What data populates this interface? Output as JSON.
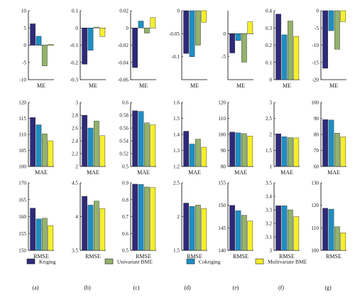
{
  "legend": [
    {
      "name": "Kriging",
      "color": "#2e2a7a"
    },
    {
      "name": "Univariate BME",
      "color": "#93b26a"
    },
    {
      "name": "Cokriging",
      "color": "#1d8fc4"
    },
    {
      "name": "Multivariate BME",
      "color": "#f5ef2a"
    }
  ],
  "panel_labels": [
    "(a)",
    "(b)",
    "(c)",
    "(d)",
    "(e)",
    "(f)",
    "(g)"
  ],
  "chart_data": [
    {
      "type": "bar",
      "panel": "(a)",
      "metric": "ME",
      "xlabel": "ME",
      "ylim": [
        -10,
        10
      ],
      "yticks": [
        "-10",
        "-5",
        "0",
        "5",
        "10"
      ],
      "values": [
        6.2,
        -6.0,
        2.6,
        0.2
      ]
    },
    {
      "type": "bar",
      "panel": "(a)",
      "metric": "MAE",
      "xlabel": "MAE",
      "ylim": [
        100,
        120
      ],
      "yticks": [
        "100",
        "105",
        "110",
        "115",
        "120"
      ],
      "values": [
        115.3,
        110.2,
        113.0,
        108.0
      ]
    },
    {
      "type": "bar",
      "panel": "(a)",
      "metric": "RMSE",
      "xlabel": "RMSE",
      "ylim": [
        150,
        170
      ],
      "yticks": [
        "150",
        "155",
        "160",
        "165",
        "170"
      ],
      "values": [
        162.5,
        159.5,
        159.3,
        157.3
      ]
    },
    {
      "type": "bar",
      "panel": "(b)",
      "metric": "ME",
      "xlabel": "ME",
      "ylim": [
        -0.3,
        0.1
      ],
      "yticks": [
        "-0.3",
        "-0.2",
        "-0.1",
        "0",
        "0.1"
      ],
      "values": [
        -0.21,
        0.005,
        -0.13,
        -0.05
      ]
    },
    {
      "type": "bar",
      "panel": "(b)",
      "metric": "MAE",
      "xlabel": "MAE",
      "ylim": [
        2,
        3
      ],
      "yticks": [
        "2",
        "2.2",
        "2.4",
        "2.6",
        "2.8",
        "3"
      ],
      "values": [
        2.8,
        2.71,
        2.6,
        2.48
      ]
    },
    {
      "type": "bar",
      "panel": "(b)",
      "metric": "RMSE",
      "xlabel": "RMSE",
      "ylim": [
        3.5,
        4.5
      ],
      "yticks": [
        "3.5",
        "4",
        "4.5"
      ],
      "values": [
        4.3,
        4.23,
        4.17,
        4.12
      ]
    },
    {
      "type": "bar",
      "panel": "(c)",
      "metric": "ME",
      "xlabel": "ME",
      "ylim": [
        -0.06,
        0.02
      ],
      "yticks": [
        "-0.06",
        "-0.04",
        "-0.02",
        "0",
        "0.02"
      ],
      "values": [
        -0.046,
        -0.006,
        0.008,
        0.012
      ]
    },
    {
      "type": "bar",
      "panel": "(c)",
      "metric": "MAE",
      "xlabel": "MAE",
      "ylim": [
        0.5,
        0.6
      ],
      "yticks": [
        "0.5",
        "0.52",
        "0.54",
        "0.56",
        "0.58",
        "0.6"
      ],
      "values": [
        0.587,
        0.568,
        0.586,
        0.565
      ]
    },
    {
      "type": "bar",
      "panel": "(c)",
      "metric": "RMSE",
      "xlabel": "RMSE",
      "ylim": [
        0.5,
        0.9
      ],
      "yticks": [
        "0.5",
        "0.6",
        "0.7",
        "0.8",
        "0.9"
      ],
      "values": [
        0.892,
        0.875,
        0.89,
        0.872
      ]
    },
    {
      "type": "bar",
      "panel": "(d)",
      "metric": "ME",
      "xlabel": "ME",
      "ylim": [
        -0.15,
        0
      ],
      "yticks": [
        "-0.1",
        "-0.05",
        "0"
      ],
      "values": [
        -0.093,
        -0.075,
        -0.1,
        -0.025
      ]
    },
    {
      "type": "bar",
      "panel": "(d)",
      "metric": "MAE",
      "xlabel": "MAE",
      "ylim": [
        1.2,
        1.6
      ],
      "yticks": [
        "1.2",
        "1.3",
        "1.4",
        "1.5",
        "1.6"
      ],
      "values": [
        1.42,
        1.37,
        1.34,
        1.32
      ]
    },
    {
      "type": "bar",
      "panel": "(d)",
      "metric": "RMSE",
      "xlabel": "RMSE",
      "ylim": [
        1.5,
        2.5
      ],
      "yticks": [
        "1.5",
        "2",
        "2.5"
      ],
      "values": [
        2.2,
        2.17,
        2.15,
        2.12
      ]
    },
    {
      "type": "bar",
      "panel": "(e)",
      "metric": "ME",
      "xlabel": "ME",
      "ylim": [
        -10,
        5
      ],
      "yticks": [
        "-5",
        "0"
      ],
      "values": [
        -4.2,
        -6.2,
        -1.5,
        2.6
      ]
    },
    {
      "type": "bar",
      "panel": "(e)",
      "metric": "MAE",
      "xlabel": "MAE",
      "ylim": [
        80,
        120
      ],
      "yticks": [
        "80",
        "90",
        "100",
        "110",
        "120"
      ],
      "values": [
        101.5,
        100.5,
        101.0,
        99.0
      ]
    },
    {
      "type": "bar",
      "panel": "(e)",
      "metric": "RMSE",
      "xlabel": "RMSE",
      "ylim": [
        140,
        155
      ],
      "yticks": [
        "140",
        "145",
        "150",
        "155"
      ],
      "values": [
        150.0,
        147.8,
        148.8,
        146.5
      ]
    },
    {
      "type": "bar",
      "panel": "(f)",
      "metric": "ME",
      "xlabel": "ME",
      "ylim": [
        0,
        0.4
      ],
      "yticks": [
        "0",
        "0.1",
        "0.2",
        "0.3",
        "0.4"
      ],
      "values": [
        0.38,
        0.34,
        0.26,
        0.25
      ]
    },
    {
      "type": "bar",
      "panel": "(f)",
      "metric": "MAE",
      "xlabel": "MAE",
      "ylim": [
        1,
        3
      ],
      "yticks": [
        "1",
        "1.5",
        "2",
        "2.5",
        "3"
      ],
      "values": [
        2.02,
        1.9,
        1.93,
        1.89
      ]
    },
    {
      "type": "bar",
      "panel": "(f)",
      "metric": "RMSE",
      "xlabel": "RMSE",
      "ylim": [
        3,
        3.5
      ],
      "yticks": [
        "3",
        "3.1",
        "3.2",
        "3.3",
        "3.4",
        "3.5"
      ],
      "values": [
        3.33,
        3.3,
        3.33,
        3.25
      ]
    },
    {
      "type": "bar",
      "panel": "(g)",
      "metric": "ME",
      "xlabel": "ME",
      "ylim": [
        -20,
        0
      ],
      "yticks": [
        "-20",
        "-15",
        "-10",
        "-5",
        "0"
      ],
      "values": [
        -16.7,
        -11.2,
        -5.8,
        -3.2
      ]
    },
    {
      "type": "bar",
      "panel": "(g)",
      "metric": "MAE",
      "xlabel": "MAE",
      "ylim": [
        60,
        100
      ],
      "yticks": [
        "60",
        "70",
        "80",
        "90",
        "100"
      ],
      "values": [
        89.3,
        80.8,
        89.0,
        78.5
      ]
    },
    {
      "type": "bar",
      "panel": "(g)",
      "metric": "RMSE",
      "xlabel": "RMSE",
      "ylim": [
        100,
        130
      ],
      "yticks": [
        "100",
        "110",
        "120",
        "130"
      ],
      "values": [
        118.7,
        110.5,
        118.3,
        107.8
      ]
    }
  ]
}
